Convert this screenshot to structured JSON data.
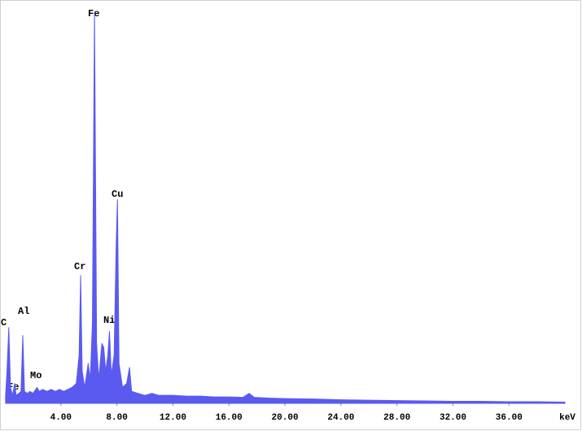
{
  "chart_data": {
    "type": "area",
    "x_label": "keV",
    "color": "#5a5af0",
    "xlim": [
      0,
      40.4
    ],
    "ylim": [
      0,
      100
    ],
    "xticks": [
      {
        "value": 4,
        "label": "4.00"
      },
      {
        "value": 8,
        "label": "8.00"
      },
      {
        "value": 12,
        "label": "12.00"
      },
      {
        "value": 16,
        "label": "16.00"
      },
      {
        "value": 20,
        "label": "20.00"
      },
      {
        "value": 24,
        "label": "24.00"
      },
      {
        "value": 28,
        "label": "28.00"
      },
      {
        "value": 32,
        "label": "32.00"
      },
      {
        "value": 36,
        "label": "36.00"
      }
    ],
    "x": [
      0.05,
      0.15,
      0.28,
      0.4,
      0.55,
      0.7,
      0.8,
      1.0,
      1.15,
      1.28,
      1.4,
      1.6,
      1.8,
      2.0,
      2.3,
      2.45,
      2.7,
      3.0,
      3.3,
      3.6,
      3.9,
      4.2,
      4.5,
      4.8,
      5.1,
      5.3,
      5.41,
      5.52,
      5.7,
      5.95,
      6.1,
      6.25,
      6.4,
      6.55,
      6.7,
      6.93,
      7.06,
      7.2,
      7.35,
      7.47,
      7.6,
      7.8,
      7.95,
      8.04,
      8.15,
      8.4,
      8.7,
      8.9,
      9.05,
      9.5,
      10,
      10.5,
      11,
      12,
      13,
      14,
      15,
      16,
      17,
      17.45,
      17.8,
      19,
      20,
      22,
      24,
      26,
      28,
      30,
      32,
      34,
      36,
      38,
      40
    ],
    "values": [
      2,
      8,
      19,
      4,
      2,
      5,
      2,
      2.5,
      3,
      17,
      3,
      2.5,
      3,
      2.5,
      4,
      3,
      3.5,
      3,
      3.5,
      3,
      3.5,
      3,
      3.5,
      4,
      5,
      12,
      32,
      8,
      4,
      10,
      6,
      20,
      98,
      15,
      6,
      15,
      14,
      8,
      12,
      18,
      7,
      12,
      40,
      51,
      10,
      4,
      5,
      9,
      3,
      2.5,
      2,
      2.5,
      2,
      2,
      1.8,
      1.8,
      1.6,
      1.6,
      1.5,
      2.5,
      1.5,
      1.3,
      1.2,
      1.1,
      0.9,
      0.8,
      0.7,
      0.6,
      0.5,
      0.5,
      0.4,
      0.4,
      0.3
    ],
    "annotations": [
      "C",
      "Fe",
      "Al",
      "Mo",
      "Cr",
      "Fe",
      "Ni",
      "Cu"
    ]
  }
}
